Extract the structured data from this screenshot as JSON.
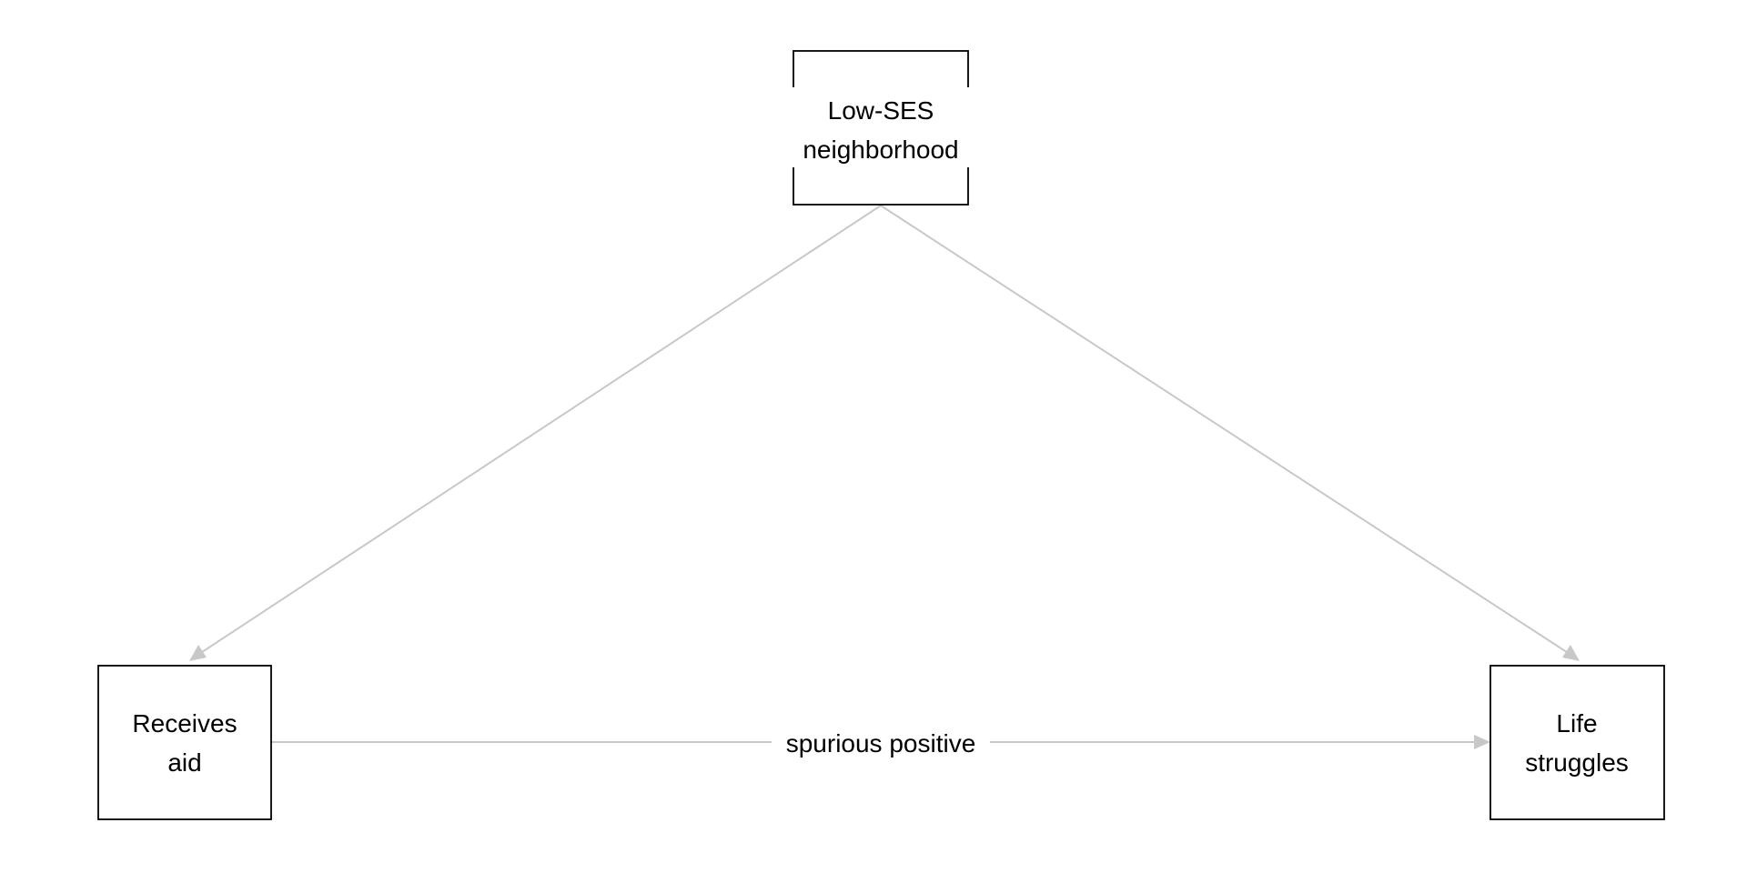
{
  "diagram": {
    "nodes": {
      "confounder": {
        "line1": "Low-SES",
        "line2": "neighborhood"
      },
      "treatment": {
        "line1": "Receives",
        "line2": "aid"
      },
      "outcome": {
        "line1": "Life",
        "line2": "struggles"
      }
    },
    "edges": {
      "confounder_to_treatment": {
        "from": "confounder",
        "to": "treatment"
      },
      "confounder_to_outcome": {
        "from": "confounder",
        "to": "outcome"
      },
      "treatment_to_outcome": {
        "from": "treatment",
        "to": "outcome",
        "label": "spurious positive"
      }
    },
    "colors": {
      "edge": "#c8c8c8",
      "node_border": "#000000",
      "text": "#000000",
      "background": "#ffffff"
    }
  }
}
